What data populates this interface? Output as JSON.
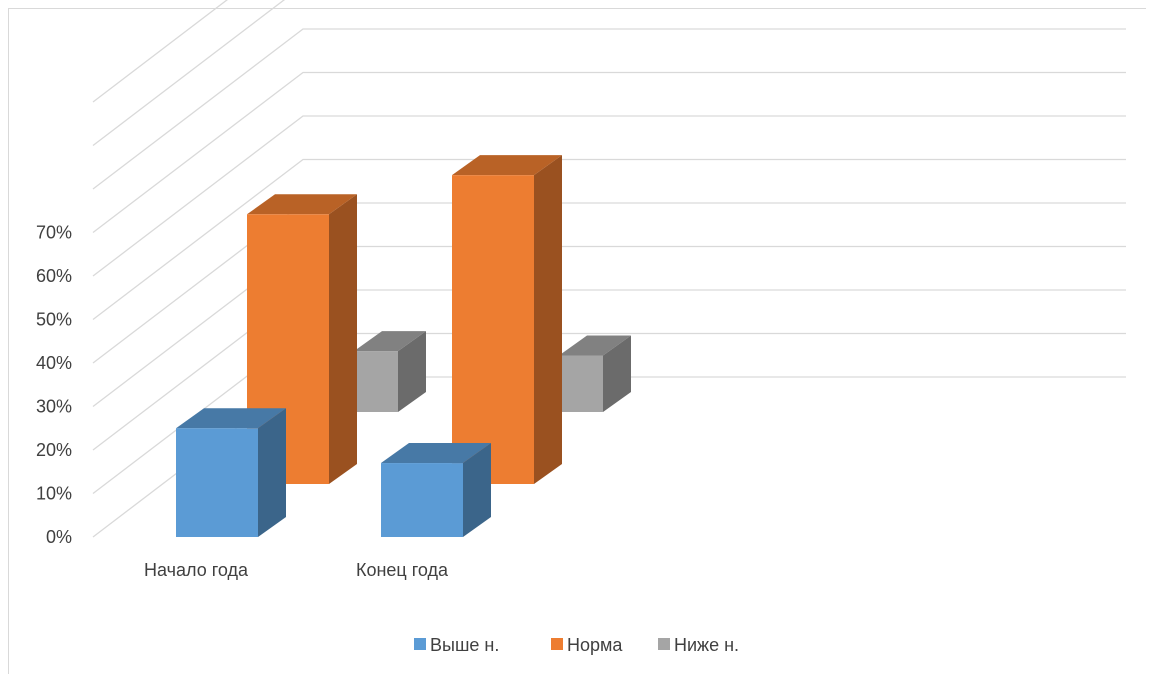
{
  "chart_data": {
    "type": "bar",
    "categories": [
      "Начало года",
      "Конец года"
    ],
    "series": [
      {
        "name": "Выше н.",
        "values": [
          25,
          17
        ],
        "color": "#5B9BD5"
      },
      {
        "name": "Норма",
        "values": [
          62,
          71
        ],
        "color": "#ED7D31"
      },
      {
        "name": "Ниже н.",
        "values": [
          14,
          13
        ],
        "color": "#A5A5A5"
      }
    ],
    "y_ticks": [
      "0%",
      "10%",
      "20%",
      "30%",
      "40%",
      "50%",
      "60%",
      "70%"
    ],
    "ylim": [
      0,
      100
    ],
    "grid": true,
    "legend_position": "bottom",
    "style": "3d-clustered-column"
  }
}
